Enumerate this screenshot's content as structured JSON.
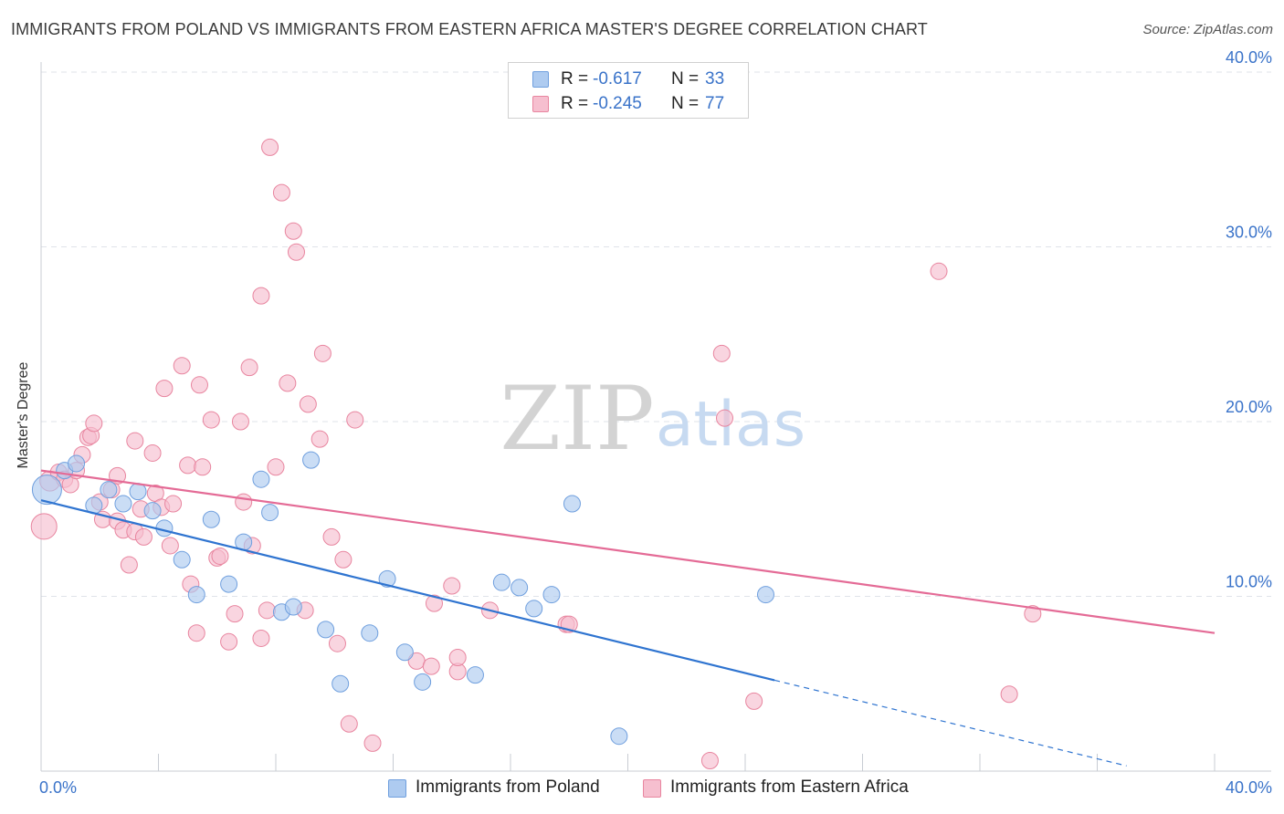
{
  "title": "IMMIGRANTS FROM POLAND VS IMMIGRANTS FROM EASTERN AFRICA MASTER'S DEGREE CORRELATION CHART",
  "source": "Source: ZipAtlas.com",
  "watermark": {
    "zip": "ZIP",
    "atlas": "atlas"
  },
  "legend": {
    "r_label": "R =",
    "n_label": "N =",
    "rows": [
      {
        "r": "-0.617",
        "n": "33"
      },
      {
        "r": "-0.245",
        "n": "77"
      }
    ]
  },
  "bottom_legend": [
    "Immigrants from Poland",
    "Immigrants from Eastern Africa"
  ],
  "colors": {
    "poland_fill": "#aecbf0",
    "poland_stroke": "#6f9fde",
    "poland_line": "#2f74d0",
    "africa_fill": "#f6bfcf",
    "africa_stroke": "#e8859f",
    "africa_line": "#e46b96",
    "tick_label": "#3a73c9",
    "grid": "#dfe3ea"
  },
  "chart_data": {
    "type": "scatter",
    "xlabel": "",
    "ylabel": "Master's Degree",
    "xlim": [
      0,
      40
    ],
    "ylim": [
      0,
      40
    ],
    "x_tick_labels": [
      "0.0%",
      "40.0%"
    ],
    "y_ticks": [
      10,
      20,
      30,
      40
    ],
    "y_tick_labels": [
      "10.0%",
      "20.0%",
      "30.0%",
      "40.0%"
    ],
    "grid": true,
    "legend_position": "top-center",
    "series": [
      {
        "name": "Immigrants from Poland",
        "r": -0.617,
        "n": 33,
        "trend": {
          "x0": 0,
          "y0": 15.5,
          "x1": 25.0,
          "y1": 5.2,
          "dashed_to_x": 37.0,
          "dashed_to_y": 0.3
        },
        "points": [
          [
            0.2,
            16.1,
            16
          ],
          [
            0.8,
            17.2,
            9
          ],
          [
            1.2,
            17.6,
            9
          ],
          [
            1.8,
            15.2,
            9
          ],
          [
            2.3,
            16.1,
            9
          ],
          [
            2.8,
            15.3,
            9
          ],
          [
            3.3,
            16.0,
            9
          ],
          [
            3.8,
            14.9,
            9
          ],
          [
            4.2,
            13.9,
            9
          ],
          [
            4.8,
            12.1,
            9
          ],
          [
            5.3,
            10.1,
            9
          ],
          [
            5.8,
            14.4,
            9
          ],
          [
            6.4,
            10.7,
            9
          ],
          [
            6.9,
            13.1,
            9
          ],
          [
            7.5,
            16.7,
            9
          ],
          [
            7.8,
            14.8,
            9
          ],
          [
            8.2,
            9.1,
            9
          ],
          [
            8.6,
            9.4,
            9
          ],
          [
            9.2,
            17.8,
            9
          ],
          [
            9.7,
            8.1,
            9
          ],
          [
            10.2,
            5.0,
            9
          ],
          [
            11.2,
            7.9,
            9
          ],
          [
            11.8,
            11.0,
            9
          ],
          [
            12.4,
            6.8,
            9
          ],
          [
            13.0,
            5.1,
            9
          ],
          [
            14.8,
            5.5,
            9
          ],
          [
            15.7,
            10.8,
            9
          ],
          [
            16.3,
            10.5,
            9
          ],
          [
            16.8,
            9.3,
            9
          ],
          [
            17.4,
            10.1,
            9
          ],
          [
            18.1,
            15.3,
            9
          ],
          [
            19.7,
            2.0,
            9
          ],
          [
            24.7,
            10.1,
            9
          ]
        ]
      },
      {
        "name": "Immigrants from Eastern Africa",
        "r": -0.245,
        "n": 77,
        "trend": {
          "x0": 0,
          "y0": 17.2,
          "x1": 40.0,
          "y1": 7.9
        },
        "points": [
          [
            0.1,
            14.0,
            14
          ],
          [
            0.3,
            16.6,
            11
          ],
          [
            0.6,
            17.1,
            9
          ],
          [
            0.8,
            16.7,
            9
          ],
          [
            1.0,
            16.4,
            9
          ],
          [
            1.2,
            17.2,
            9
          ],
          [
            1.4,
            18.1,
            9
          ],
          [
            1.6,
            19.1,
            9
          ],
          [
            1.7,
            19.2,
            9
          ],
          [
            1.8,
            19.9,
            9
          ],
          [
            2.0,
            15.4,
            9
          ],
          [
            2.1,
            14.4,
            9
          ],
          [
            2.4,
            16.1,
            9
          ],
          [
            2.6,
            14.3,
            9
          ],
          [
            2.6,
            16.9,
            9
          ],
          [
            2.8,
            13.8,
            9
          ],
          [
            3.0,
            11.8,
            9
          ],
          [
            3.2,
            13.7,
            9
          ],
          [
            3.2,
            18.9,
            9
          ],
          [
            3.4,
            15.0,
            9
          ],
          [
            3.5,
            13.4,
            9
          ],
          [
            3.8,
            18.2,
            9
          ],
          [
            3.9,
            15.9,
            9
          ],
          [
            4.1,
            15.1,
            9
          ],
          [
            4.2,
            21.9,
            9
          ],
          [
            4.4,
            12.9,
            9
          ],
          [
            4.5,
            15.3,
            9
          ],
          [
            4.8,
            23.2,
            9
          ],
          [
            5.0,
            17.5,
            9
          ],
          [
            5.1,
            10.7,
            9
          ],
          [
            5.3,
            7.9,
            9
          ],
          [
            5.4,
            22.1,
            9
          ],
          [
            5.5,
            17.4,
            9
          ],
          [
            5.8,
            20.1,
            9
          ],
          [
            6.0,
            12.2,
            9
          ],
          [
            6.1,
            12.3,
            9
          ],
          [
            6.4,
            7.4,
            9
          ],
          [
            6.6,
            9.0,
            9
          ],
          [
            6.8,
            20.0,
            9
          ],
          [
            6.9,
            15.4,
            9
          ],
          [
            7.1,
            23.1,
            9
          ],
          [
            7.2,
            12.9,
            9
          ],
          [
            7.5,
            7.6,
            9
          ],
          [
            7.5,
            27.2,
            9
          ],
          [
            7.7,
            9.2,
            9
          ],
          [
            7.8,
            35.7,
            9
          ],
          [
            8.0,
            17.4,
            9
          ],
          [
            8.2,
            33.1,
            9
          ],
          [
            8.4,
            22.2,
            9
          ],
          [
            8.6,
            30.9,
            9
          ],
          [
            8.7,
            29.7,
            9
          ],
          [
            9.0,
            9.2,
            9
          ],
          [
            9.1,
            21.0,
            9
          ],
          [
            9.5,
            19.0,
            9
          ],
          [
            9.6,
            23.9,
            9
          ],
          [
            9.9,
            13.4,
            9
          ],
          [
            10.1,
            7.3,
            9
          ],
          [
            10.3,
            12.1,
            9
          ],
          [
            10.5,
            2.7,
            9
          ],
          [
            10.7,
            20.1,
            9
          ],
          [
            11.3,
            1.6,
            9
          ],
          [
            12.8,
            6.3,
            9
          ],
          [
            13.3,
            6.0,
            9
          ],
          [
            13.4,
            9.6,
            9
          ],
          [
            14.0,
            10.6,
            9
          ],
          [
            14.2,
            5.7,
            9
          ],
          [
            14.2,
            6.5,
            9
          ],
          [
            15.3,
            9.2,
            9
          ],
          [
            17.9,
            8.4,
            9
          ],
          [
            18.0,
            8.4,
            9
          ],
          [
            22.8,
            0.6,
            9
          ],
          [
            23.2,
            23.9,
            9
          ],
          [
            23.3,
            20.2,
            9
          ],
          [
            24.3,
            4.0,
            9
          ],
          [
            30.6,
            28.6,
            9
          ],
          [
            33.0,
            4.4,
            9
          ],
          [
            33.8,
            9.0,
            9
          ]
        ]
      }
    ]
  }
}
